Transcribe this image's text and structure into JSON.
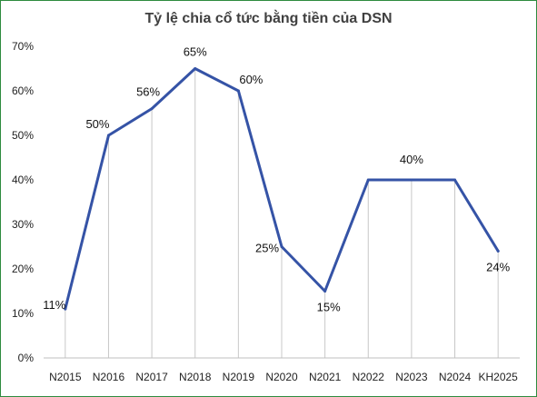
{
  "chart_data": {
    "type": "line",
    "title": "Tỷ lệ chia cổ tức bằng tiền của DSN",
    "categories": [
      "N2015",
      "N2016",
      "N2017",
      "N2018",
      "N2019",
      "N2020",
      "N2021",
      "N2022",
      "N2023",
      "N2024",
      "KH2025"
    ],
    "series": [
      {
        "values": [
          11,
          50,
          56,
          65,
          60,
          25,
          15,
          40,
          40,
          40,
          24
        ],
        "color": "#3553a6"
      }
    ],
    "data_labels": [
      "11%",
      "50%",
      "56%",
      "65%",
      "60%",
      "25%",
      "15%",
      "40%",
      "",
      "",
      "24%"
    ],
    "yticks": [
      0,
      10,
      20,
      30,
      40,
      50,
      60,
      70
    ],
    "ytick_labels": [
      "0%",
      "10%",
      "20%",
      "30%",
      "40%",
      "50%",
      "60%",
      "70%"
    ],
    "ylim": [
      0,
      70
    ],
    "xlabel": "",
    "ylabel": "",
    "grid": "vertical drop lines only",
    "legend": "none"
  }
}
